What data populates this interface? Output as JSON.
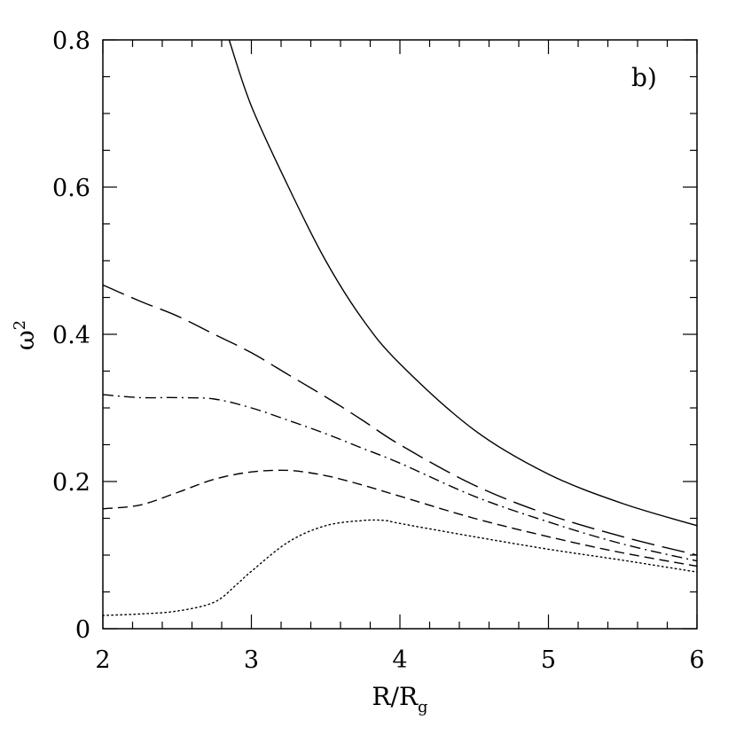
{
  "chart_data": {
    "type": "line",
    "annotation": "b)",
    "xlabel": "R/R",
    "xlabel_sub": "g",
    "ylabel": "ω",
    "ylabel_sup": "2",
    "xlim": [
      2,
      6
    ],
    "ylim": [
      0,
      0.8
    ],
    "x_ticks": [
      2,
      3,
      4,
      5,
      6
    ],
    "x_tick_labels": [
      "2",
      "3",
      "4",
      "5",
      "6"
    ],
    "y_ticks": [
      0,
      0.2,
      0.4,
      0.6,
      0.8
    ],
    "y_tick_labels": [
      "0",
      "0.2",
      "0.4",
      "0.6",
      "0.8"
    ],
    "grid": false,
    "series": [
      {
        "style": "solid",
        "x": [
          2.85,
          3.0,
          3.25,
          3.5,
          3.75,
          4.0,
          4.5,
          5.0,
          5.5,
          6.0
        ],
        "y": [
          0.8,
          0.71,
          0.6,
          0.5,
          0.42,
          0.36,
          0.27,
          0.21,
          0.17,
          0.14
        ]
      },
      {
        "style": "long-dash",
        "x": [
          2.0,
          2.25,
          2.5,
          2.75,
          3.0,
          3.25,
          3.5,
          3.75,
          4.0,
          4.5,
          5.0,
          5.5,
          6.0
        ],
        "y": [
          0.467,
          0.445,
          0.425,
          0.4,
          0.375,
          0.345,
          0.315,
          0.283,
          0.25,
          0.195,
          0.155,
          0.125,
          0.1
        ]
      },
      {
        "style": "dash-dot",
        "x": [
          2.0,
          2.25,
          2.5,
          2.75,
          3.0,
          3.25,
          3.5,
          3.75,
          4.0,
          4.5,
          5.0,
          5.5,
          6.0
        ],
        "y": [
          0.318,
          0.314,
          0.314,
          0.312,
          0.3,
          0.283,
          0.265,
          0.245,
          0.225,
          0.18,
          0.145,
          0.115,
          0.092
        ]
      },
      {
        "style": "short-dash",
        "x": [
          2.0,
          2.25,
          2.5,
          2.75,
          3.0,
          3.25,
          3.5,
          3.75,
          4.0,
          4.5,
          5.0,
          5.5,
          6.0
        ],
        "y": [
          0.163,
          0.168,
          0.185,
          0.203,
          0.213,
          0.215,
          0.208,
          0.195,
          0.18,
          0.15,
          0.125,
          0.103,
          0.085
        ]
      },
      {
        "style": "dotted",
        "x": [
          2.0,
          2.25,
          2.5,
          2.75,
          2.9,
          3.0,
          3.25,
          3.5,
          3.75,
          3.9,
          4.0,
          4.5,
          5.0,
          5.5,
          6.0
        ],
        "y": [
          0.018,
          0.02,
          0.024,
          0.036,
          0.06,
          0.078,
          0.118,
          0.14,
          0.147,
          0.147,
          0.143,
          0.125,
          0.108,
          0.093,
          0.077
        ]
      }
    ]
  }
}
